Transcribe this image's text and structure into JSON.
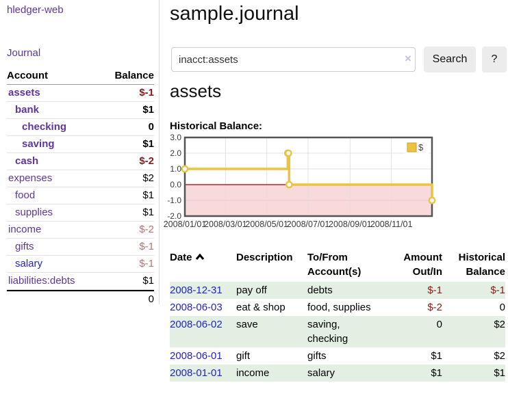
{
  "app": {
    "title": "hledger-web"
  },
  "sidebar": {
    "journal_link": "Journal",
    "account_header": "Account",
    "balance_header": "Balance",
    "accounts": [
      {
        "name": "assets",
        "balance": "$-1",
        "indent": 0,
        "bold": true,
        "name_color": "purple",
        "balance_color": "negative-strong"
      },
      {
        "name": "bank",
        "balance": "$1",
        "indent": 1,
        "bold": true,
        "name_color": "purple",
        "balance_color": "normal"
      },
      {
        "name": "checking",
        "balance": "0",
        "indent": 2,
        "bold": true,
        "name_color": "purple",
        "balance_color": "normal"
      },
      {
        "name": "saving",
        "balance": "$1",
        "indent": 2,
        "bold": true,
        "name_color": "purple",
        "balance_color": "normal"
      },
      {
        "name": "cash",
        "balance": "$-2",
        "indent": 1,
        "bold": true,
        "name_color": "purple",
        "balance_color": "negative-strong"
      },
      {
        "name": "expenses",
        "balance": "$2",
        "indent": 0,
        "bold": false,
        "name_color": "purple",
        "balance_color": "normal"
      },
      {
        "name": "food",
        "balance": "$1",
        "indent": 1,
        "bold": false,
        "name_color": "purple",
        "balance_color": "normal"
      },
      {
        "name": "supplies",
        "balance": "$1",
        "indent": 1,
        "bold": false,
        "name_color": "purple",
        "balance_color": "normal"
      },
      {
        "name": "income",
        "balance": "$-2",
        "indent": 0,
        "bold": false,
        "name_color": "purple",
        "balance_color": "negative-soft"
      },
      {
        "name": "gifts",
        "balance": "$-1",
        "indent": 1,
        "bold": false,
        "name_color": "purple",
        "balance_color": "negative-soft"
      },
      {
        "name": "salary",
        "balance": "$-1",
        "indent": 1,
        "bold": false,
        "name_color": "blue",
        "balance_color": "negative-soft"
      },
      {
        "name": "liabilities:debts",
        "balance": "$1",
        "indent": 0,
        "bold": false,
        "name_color": "purple",
        "balance_color": "normal"
      }
    ],
    "total": "0"
  },
  "main": {
    "title": "sample.journal",
    "search": {
      "value": "inacct:assets",
      "clear_icon": "×",
      "search_button": "Search",
      "help_button": "?"
    },
    "account_heading": "assets",
    "chart_title": "Historical Balance:"
  },
  "chart_data": {
    "type": "line",
    "title": "Historical Balance",
    "step": true,
    "ylim": [
      -2,
      3
    ],
    "xlim_days": [
      0,
      365
    ],
    "yticks": [
      {
        "value": 3,
        "label": "3.0"
      },
      {
        "value": 2,
        "label": "2.0"
      },
      {
        "value": 1,
        "label": "1.0"
      },
      {
        "value": 0,
        "label": "0.0"
      },
      {
        "value": -1,
        "label": "-1.0"
      },
      {
        "value": -2,
        "label": "-2.0"
      }
    ],
    "xticks": [
      {
        "day": 0,
        "label": "2008/01/01"
      },
      {
        "day": 60,
        "label": "2008/03/01"
      },
      {
        "day": 121,
        "label": "2008/05/01"
      },
      {
        "day": 182,
        "label": "2008/07/01"
      },
      {
        "day": 244,
        "label": "2008/09/01"
      },
      {
        "day": 305,
        "label": "2008/11/01"
      }
    ],
    "series": [
      {
        "name": "$",
        "color": "#edc240",
        "marker_fill": "#ffffff",
        "points": [
          {
            "date": "2008-01-01",
            "day": 0,
            "value": 1
          },
          {
            "date": "2008-06-01",
            "day": 152,
            "value": 2
          },
          {
            "date": "2008-06-02",
            "day": 153,
            "value": 2
          },
          {
            "date": "2008-06-03",
            "day": 154,
            "value": 0
          },
          {
            "date": "2008-12-31",
            "day": 365,
            "value": -1
          }
        ]
      }
    ],
    "legend": {
      "label": "$",
      "swatch_color": "#edc240",
      "position": "top-right"
    },
    "grid": true,
    "grid_color": "#e0e0e0",
    "border_color": "#545454",
    "zero_line_color": "#a40000",
    "negative_region": {
      "below": 0,
      "fill": "#f9dada"
    }
  },
  "register": {
    "headers": {
      "date": "Date",
      "description": "Description",
      "tofrom_line1": "To/From",
      "tofrom_line2": "Account(s)",
      "amount_line1": "Amount",
      "amount_line2": "Out/In",
      "balance_line1": "Historical",
      "balance_line2": "Balance"
    },
    "rows": [
      {
        "date": "2008-12-31",
        "description": "pay off",
        "accounts": "debts",
        "amount": "$-1",
        "amount_negative": true,
        "balance": "$-1",
        "balance_negative": true,
        "shaded": true
      },
      {
        "date": "2008-06-03",
        "description": "eat & shop",
        "accounts": "food, supplies",
        "amount": "$-2",
        "amount_negative": true,
        "balance": "0",
        "balance_negative": false,
        "shaded": false
      },
      {
        "date": "2008-06-02",
        "description": "save",
        "accounts": "saving, checking",
        "amount": "0",
        "amount_negative": false,
        "balance": "$2",
        "balance_negative": false,
        "shaded": true
      },
      {
        "date": "2008-06-01",
        "description": "gift",
        "accounts": "gifts",
        "amount": "$1",
        "amount_negative": false,
        "balance": "$2",
        "balance_negative": false,
        "shaded": false
      },
      {
        "date": "2008-01-01",
        "description": "income",
        "accounts": "salary",
        "amount": "$1",
        "amount_negative": false,
        "balance": "$1",
        "balance_negative": false,
        "shaded": true
      }
    ]
  },
  "colors": {
    "link_purple": "#5e35a1",
    "link_blue": "#2222cc",
    "negative_strong": "#8b1a1a",
    "negative_soft": "#bb7272",
    "row_shade_green": "#e2efe2",
    "series_gold": "#edc240"
  }
}
